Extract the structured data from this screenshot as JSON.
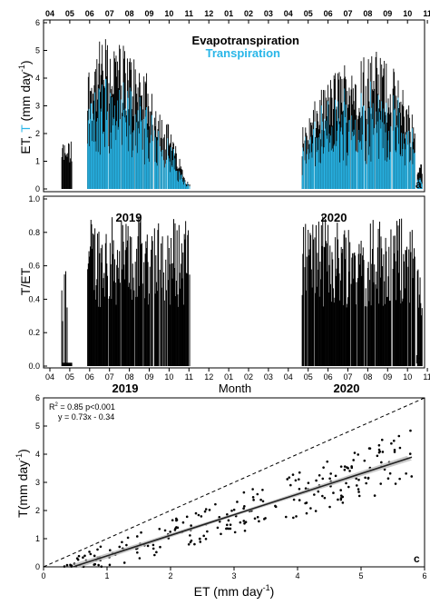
{
  "months_top": [
    "04",
    "05",
    "06",
    "07",
    "08",
    "09",
    "10",
    "11",
    "12",
    "01",
    "02",
    "03",
    "04",
    "05",
    "06",
    "07",
    "08",
    "09",
    "10",
    "11"
  ],
  "months_bottom": [
    "04",
    "05",
    "06",
    "07",
    "08",
    "09",
    "10",
    "11",
    "12",
    "01",
    "02",
    "03",
    "04",
    "05",
    "06",
    "07",
    "08",
    "09",
    "10",
    "11"
  ],
  "colors": {
    "et": "#000000",
    "t": "#29b6e8",
    "fit": "#222222",
    "ci": "#bdbdbd"
  },
  "chart_data": [
    {
      "type": "bar",
      "panel": "a",
      "ylabel_prefix": "ET, ",
      "ylabel_t": "T",
      "ylabel_suffix": " (mm day",
      "ylabel_exp": "-1",
      "ylabel_close": ")",
      "ylim": [
        0,
        6
      ],
      "yticks": [
        "0",
        "1",
        "2",
        "3",
        "4",
        "5",
        "6"
      ],
      "legend": [
        "Evapotranspiration",
        "Transpiration"
      ],
      "x_axis": "month (Apr 2019 – Nov 2020)",
      "series_summary": [
        {
          "name": "Evapotranspiration",
          "period": "2019",
          "peak_month": "07",
          "peak_value": 5.8,
          "typical_jul": 4.5,
          "typical_oct": 1.2
        },
        {
          "name": "Transpiration",
          "period": "2019",
          "peak_month": "07",
          "peak_value": 4.5,
          "typical_jul": 3.5
        },
        {
          "name": "Evapotranspiration",
          "period": "2020",
          "peak_month": "08",
          "peak_value": 5.7,
          "typical_aug": 4.0
        },
        {
          "name": "Transpiration",
          "period": "2020",
          "peak_month": "08",
          "peak_value": 4.4,
          "typical_aug": 3.0
        }
      ]
    },
    {
      "type": "bar",
      "panel": "b",
      "ylabel": "T/ET",
      "ylim": [
        0,
        1.0
      ],
      "yticks": [
        "0.0",
        "0.2",
        "0.4",
        "0.6",
        "0.8",
        "1.0"
      ],
      "xlabel": "Month",
      "year_labels": [
        "2019",
        "2020"
      ],
      "series_summary": [
        {
          "name": "T/ET",
          "period": "2019",
          "typical": 0.7,
          "max": 0.93
        },
        {
          "name": "T/ET",
          "period": "2020",
          "typical": 0.6,
          "max": 0.93
        }
      ]
    },
    {
      "type": "scatter",
      "panel": "c",
      "xlabel": "ET (mm day",
      "xlabel_exp": "-1",
      "xlabel_close": ")",
      "ylabel": "T(mm day",
      "ylabel_exp": "-1",
      "ylabel_close": ")",
      "xlim": [
        0,
        6
      ],
      "ylim": [
        0,
        6
      ],
      "xticks": [
        "0",
        "1",
        "2",
        "3",
        "4",
        "5",
        "6"
      ],
      "yticks": [
        "0",
        "1",
        "2",
        "3",
        "4",
        "5",
        "6"
      ],
      "r2_prefix": "R",
      "r2_exp": "2",
      "r2_text": " = 0.85 p<0.001",
      "eq_text": "y = 0.73x - 0.34",
      "fit": {
        "slope": 0.73,
        "intercept": -0.34,
        "x_range": [
          0.47,
          5.8
        ]
      },
      "one_to_one": true
    }
  ]
}
